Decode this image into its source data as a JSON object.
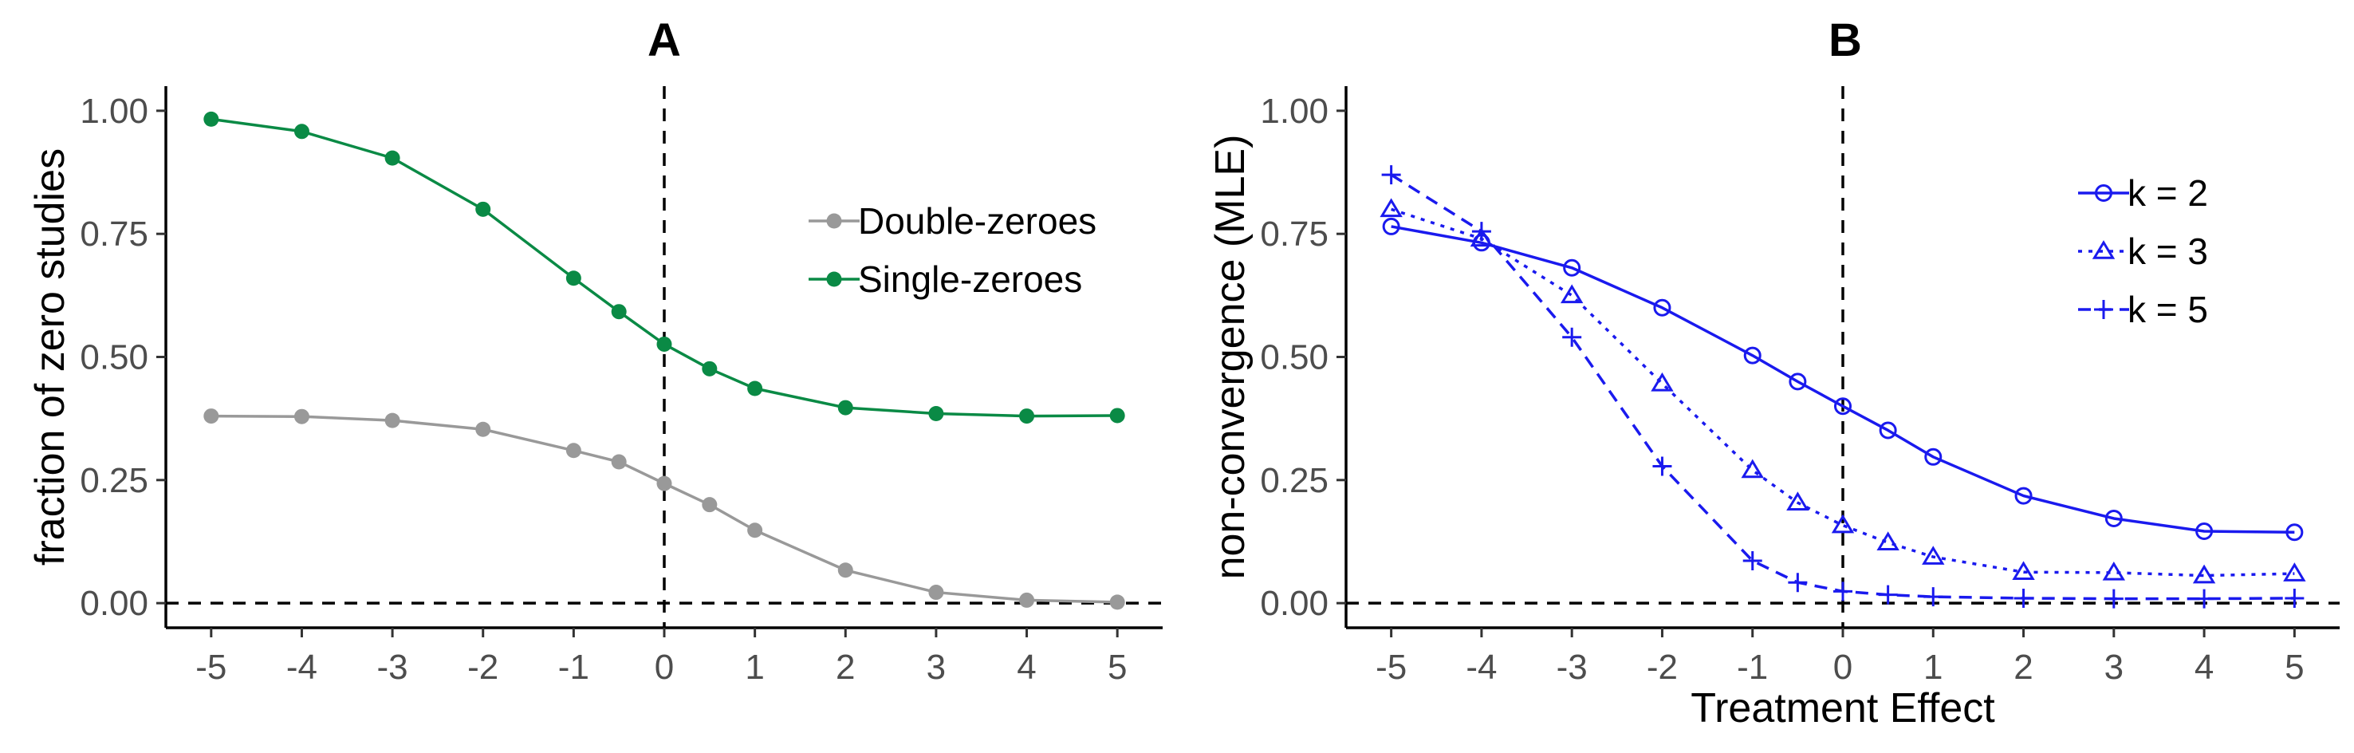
{
  "chart_data": [
    {
      "type": "line",
      "panel": "A",
      "title": "A",
      "xlabel": "",
      "ylabel": "fraction of zero studies",
      "x": [
        -5,
        -4,
        -3,
        -2,
        -1,
        -0.5,
        0,
        0.5,
        1,
        2,
        3,
        4,
        5
      ],
      "xticks": [
        -5,
        -4,
        -3,
        -2,
        -1,
        0,
        1,
        2,
        3,
        4,
        5
      ],
      "xtick_labels": [
        "-5",
        "-4",
        "-3",
        "-2",
        "-1",
        "0",
        "1",
        "2",
        "3",
        "4",
        "5"
      ],
      "yticks": [
        0,
        0.25,
        0.5,
        0.75,
        1
      ],
      "ytick_labels": [
        "0.00",
        "0.25",
        "0.50",
        "0.75",
        "1.00"
      ],
      "xlim": [
        -5.5,
        5.5
      ],
      "ylim": [
        -0.05,
        1.05
      ],
      "reference_lines": {
        "vertical_x": 0,
        "horizontal_y": 0
      },
      "legend_position": "top-right",
      "series": [
        {
          "name": "Double-zeroes",
          "color": "#999999",
          "marker": "dot",
          "linestyle": "solid",
          "values": [
            0.38,
            0.379,
            0.371,
            0.353,
            0.31,
            0.287,
            0.243,
            0.2,
            0.148,
            0.067,
            0.022,
            0.006,
            0.002
          ]
        },
        {
          "name": "Single-zeroes",
          "color": "#0a8a45",
          "marker": "dot",
          "linestyle": "solid",
          "values": [
            0.983,
            0.958,
            0.904,
            0.8,
            0.66,
            0.592,
            0.526,
            0.476,
            0.436,
            0.397,
            0.385,
            0.38,
            0.381
          ]
        }
      ]
    },
    {
      "type": "line",
      "panel": "B",
      "title": "B",
      "xlabel": "Treatment Effect",
      "ylabel": "non-convergence (MLE)",
      "x": [
        -5,
        -4,
        -3,
        -2,
        -1,
        -0.5,
        0,
        0.5,
        1,
        2,
        3,
        4,
        5
      ],
      "xticks": [
        -5,
        -4,
        -3,
        -2,
        -1,
        0,
        1,
        2,
        3,
        4,
        5
      ],
      "xtick_labels": [
        "-5",
        "-4",
        "-3",
        "-2",
        "-1",
        "0",
        "1",
        "2",
        "3",
        "4",
        "5"
      ],
      "yticks": [
        0,
        0.25,
        0.5,
        0.75,
        1
      ],
      "ytick_labels": [
        "0.00",
        "0.25",
        "0.50",
        "0.75",
        "1.00"
      ],
      "xlim": [
        -5.5,
        5.5
      ],
      "ylim": [
        -0.05,
        1.05
      ],
      "reference_lines": {
        "vertical_x": 0,
        "horizontal_y": 0
      },
      "legend_position": "top-right",
      "series": [
        {
          "name": "k = 2",
          "color": "#1a1aee",
          "marker": "circle",
          "linestyle": "solid",
          "values": [
            0.765,
            0.732,
            0.681,
            0.6,
            0.503,
            0.45,
            0.4,
            0.351,
            0.297,
            0.218,
            0.172,
            0.146,
            0.144
          ]
        },
        {
          "name": "k = 3",
          "color": "#1a1aee",
          "marker": "triangle",
          "linestyle": "dotted",
          "values": [
            0.8,
            0.74,
            0.625,
            0.446,
            0.27,
            0.204,
            0.158,
            0.123,
            0.094,
            0.063,
            0.062,
            0.056,
            0.06
          ]
        },
        {
          "name": "k = 5",
          "color": "#1a1aee",
          "marker": "plus",
          "linestyle": "dashed",
          "values": [
            0.87,
            0.755,
            0.54,
            0.278,
            0.086,
            0.042,
            0.024,
            0.017,
            0.013,
            0.01,
            0.009,
            0.009,
            0.01
          ]
        }
      ]
    }
  ]
}
